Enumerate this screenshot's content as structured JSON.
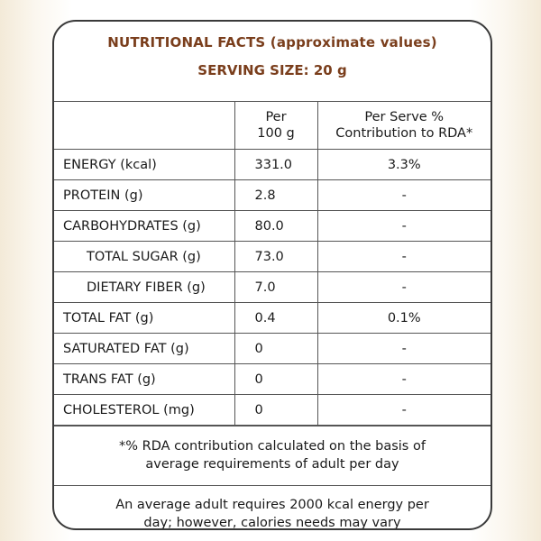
{
  "heading": {
    "title": "NUTRITIONAL FACTS (approximate values)",
    "serving": "SERVING SIZE: 20 g"
  },
  "table": {
    "col_per100_line1": "Per",
    "col_per100_line2": "100 g",
    "col_rda_line1": "Per Serve %",
    "col_rda_line2": "Contribution to RDA*",
    "rows": [
      {
        "name": "ENERGY (kcal)",
        "per100": "331.0",
        "rda": "3.3%"
      },
      {
        "name": "PROTEIN (g)",
        "per100": "2.8",
        "rda": "-"
      },
      {
        "name": "CARBOHYDRATES (g)",
        "per100": "80.0",
        "rda": "-"
      },
      {
        "name": "TOTAL  SUGAR (g)",
        "per100": "73.0",
        "rda": "-"
      },
      {
        "name": "DIETARY FIBER (g)",
        "per100": "7.0",
        "rda": "-"
      },
      {
        "name": "TOTAL FAT (g)",
        "per100": "0.4",
        "rda": "0.1%"
      },
      {
        "name": "SATURATED FAT (g)",
        "per100": "0",
        "rda": "-"
      },
      {
        "name": "TRANS FAT (g)",
        "per100": "0",
        "rda": "-"
      },
      {
        "name": "CHOLESTEROL (mg)",
        "per100": "0",
        "rda": "-"
      }
    ]
  },
  "notes": {
    "rda_note_line1": "*% RDA contribution calculated on the basis of",
    "rda_note_line2": "average requirements of adult per day",
    "energy_note_line1": "An average adult requires 2000 kcal energy per",
    "energy_note_line2": "day; however, calories needs may vary"
  }
}
